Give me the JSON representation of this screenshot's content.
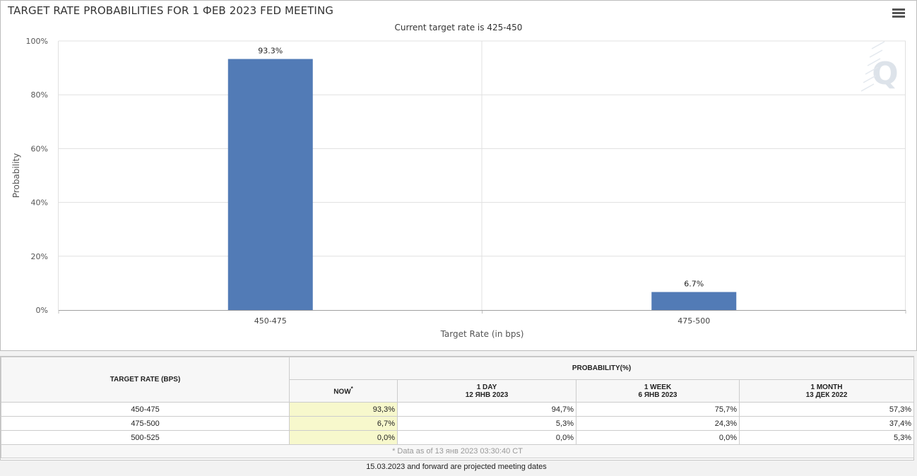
{
  "chart_data": {
    "type": "bar",
    "title": "TARGET RATE PROBABILITIES FOR 1 ФЕВ 2023 FED MEETING",
    "subtitle": "Current target rate is 425-450",
    "categories": [
      "450-475",
      "475-500"
    ],
    "values": [
      93.3,
      6.7
    ],
    "data_labels": [
      "93.3%",
      "6.7%"
    ],
    "xlabel": "Target Rate (in bps)",
    "ylabel": "Probability",
    "ylim": [
      0,
      100
    ],
    "yticks": [
      "0%",
      "20%",
      "40%",
      "60%",
      "80%",
      "100%"
    ],
    "grid": true,
    "bar_color": "#527bb6"
  },
  "menu_icon": "hamburger-menu-icon",
  "watermark_icon": "quikstrike-q-logo",
  "table": {
    "col_target": "TARGET RATE (BPS)",
    "col_prob": "PROBABILITY(%)",
    "now": "NOW",
    "now_mark": "*",
    "day_label": "1 DAY",
    "day_date": "12 ЯНВ 2023",
    "week_label": "1 WEEK",
    "week_date": "6 ЯНВ 2023",
    "month_label": "1 MONTH",
    "month_date": "13 ДЕК 2022",
    "rows": [
      {
        "rate": "450-475",
        "now": "93,3%",
        "day": "94,7%",
        "week": "75,7%",
        "month": "57,3%"
      },
      {
        "rate": "475-500",
        "now": "6,7%",
        "day": "5,3%",
        "week": "24,3%",
        "month": "37,4%"
      },
      {
        "rate": "500-525",
        "now": "0,0%",
        "day": "0,0%",
        "week": "0,0%",
        "month": "5,3%"
      }
    ],
    "footnote": "* Data as of 13 янв 2023 03:30:40 CT"
  },
  "bottom_note": "15.03.2023 and forward are projected meeting dates"
}
